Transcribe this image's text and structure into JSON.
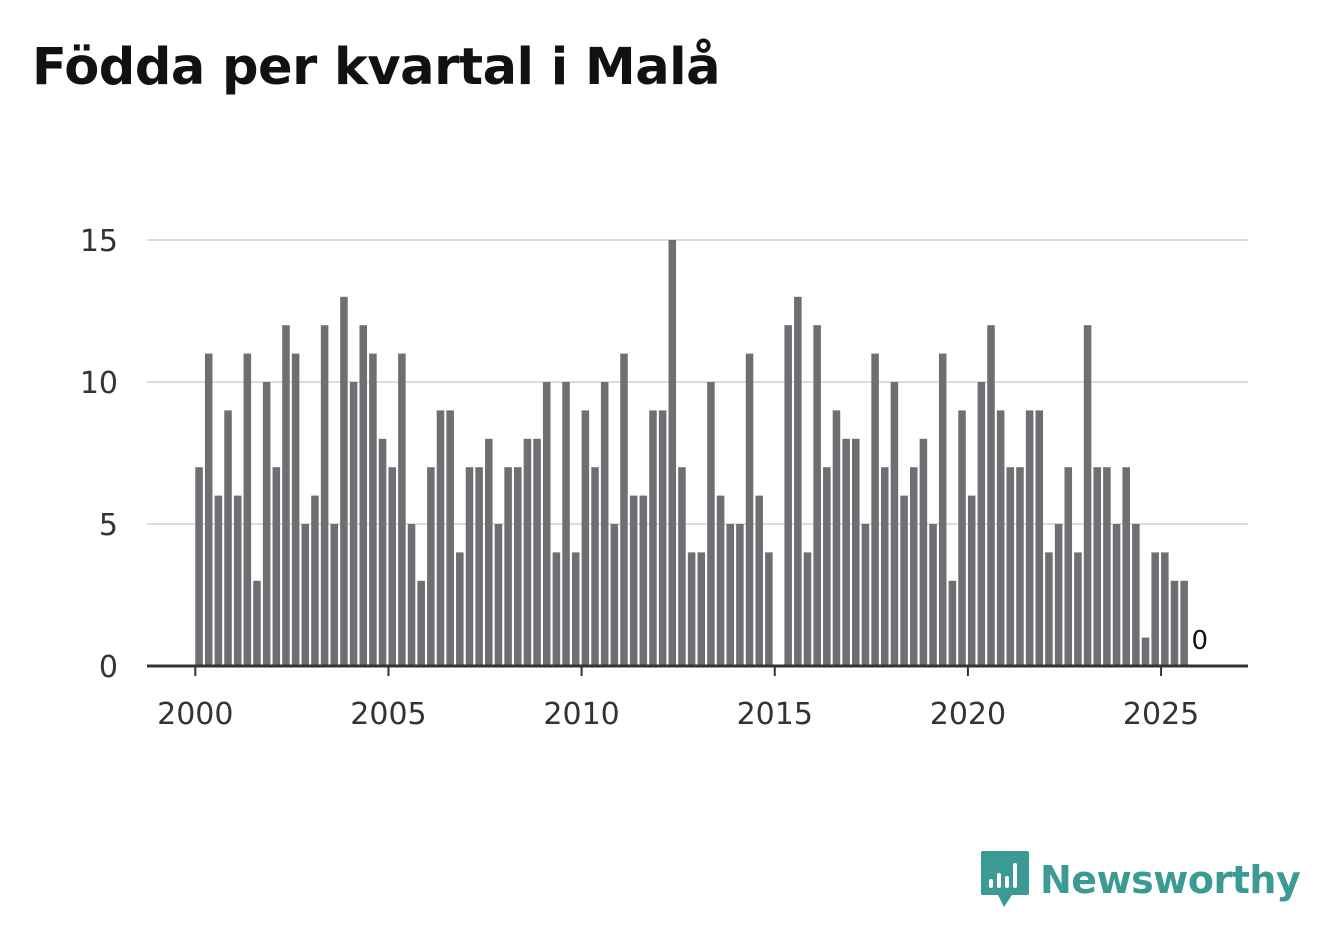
{
  "title": "Födda per kvartal i Malå",
  "brand": {
    "name": "Newsworthy",
    "color": "#3b9b94",
    "icon": "newsworthy-logo-icon"
  },
  "chart_data": {
    "type": "bar",
    "title": "Födda per kvartal i Malå",
    "xlabel": "",
    "ylabel": "",
    "ylim": [
      0,
      15
    ],
    "yticks": [
      0,
      5,
      10,
      15
    ],
    "xticks": [
      2000,
      2005,
      2010,
      2015,
      2020,
      2025
    ],
    "xlim": [
      1998.75,
      2027.25
    ],
    "grid": true,
    "bar_color": "#6f6f73",
    "start_year": 2000,
    "series": [
      {
        "name": "Födda",
        "values": [
          7,
          11,
          6,
          9,
          6,
          11,
          3,
          10,
          7,
          12,
          11,
          5,
          6,
          12,
          5,
          13,
          10,
          12,
          11,
          8,
          7,
          11,
          5,
          3,
          7,
          9,
          9,
          4,
          7,
          7,
          8,
          5,
          7,
          7,
          8,
          8,
          10,
          4,
          10,
          4,
          9,
          7,
          10,
          5,
          11,
          6,
          6,
          9,
          9,
          15,
          7,
          4,
          4,
          10,
          6,
          5,
          5,
          11,
          6,
          4,
          0,
          12,
          13,
          4,
          12,
          7,
          9,
          8,
          8,
          5,
          11,
          7,
          10,
          6,
          7,
          8,
          5,
          11,
          3,
          9,
          6,
          10,
          12,
          9,
          7,
          7,
          9,
          9,
          4,
          5,
          7,
          4,
          12,
          7,
          7,
          5,
          7,
          5,
          1,
          4,
          4,
          3,
          3,
          0
        ]
      }
    ],
    "last_value_label": "0"
  }
}
